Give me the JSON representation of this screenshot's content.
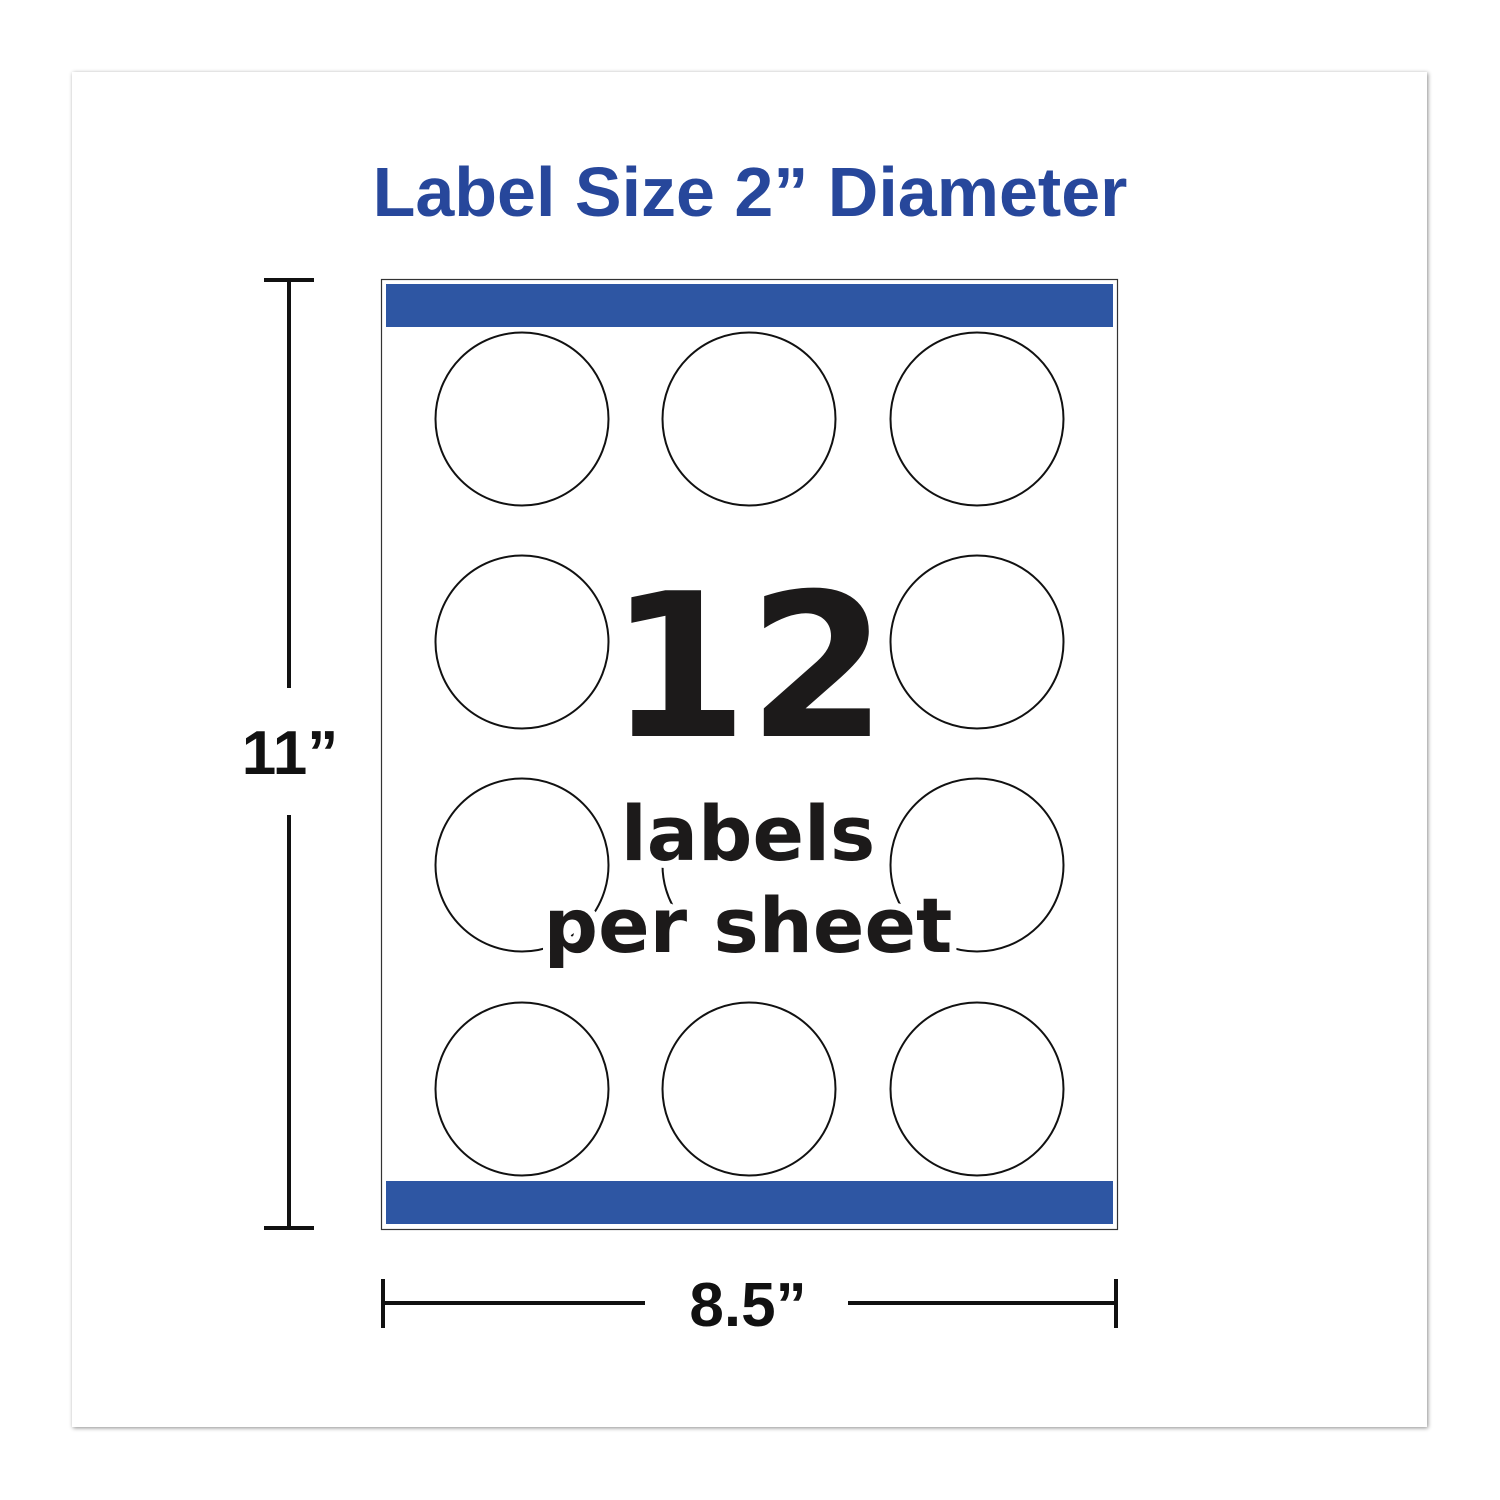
{
  "title": "Label Size 2”  Diameter",
  "height_label": "11”",
  "width_label": "8.5”",
  "count": "12",
  "count_caption_1": "labels",
  "count_caption_2": "per sheet",
  "labels_per_sheet": 12,
  "grid": {
    "rows": 4,
    "columns": 3
  },
  "colors": {
    "title": "#27479b",
    "band": "#2e56a3",
    "text": "#1c1a1a"
  }
}
